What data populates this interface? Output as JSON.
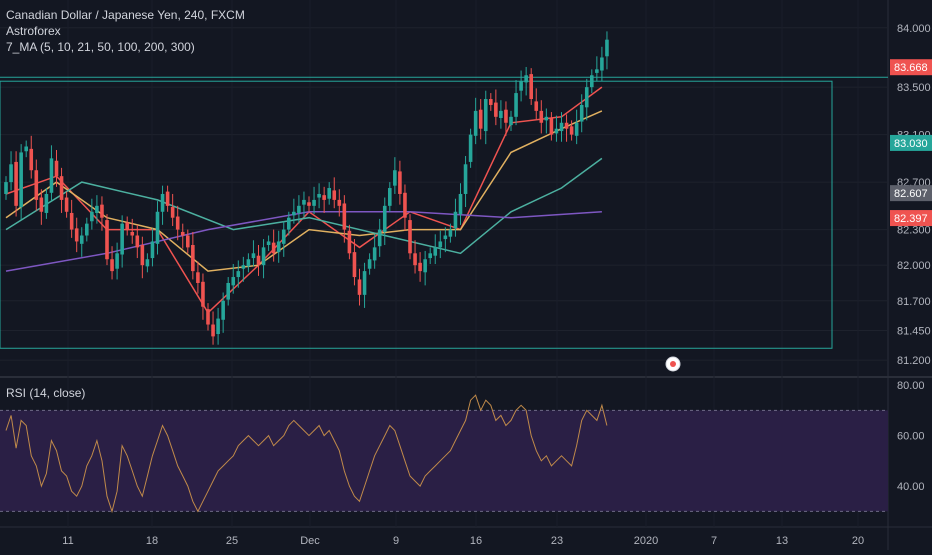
{
  "header": {
    "title": "Canadian Dollar / Japanese Yen, 240, FXCM",
    "broker": "Astroforex",
    "ma_indicator": "7_MA (5, 10, 21, 50, 100, 200, 300)"
  },
  "rsi_panel": {
    "label": "RSI (14, close)",
    "ticks": [
      "80.00",
      "60.00",
      "40.00"
    ]
  },
  "colors": {
    "background": "#131722",
    "up": "#26a69a",
    "down": "#ef5350",
    "rsi_band": "#2a1f45",
    "rsi_line": "#c08a4a",
    "rect": "#26a69a"
  },
  "chart_data": [
    {
      "type": "candlestick",
      "title": "Canadian Dollar / Japanese Yen, 240, FXCM",
      "ylim": [
        81.1,
        84.15
      ],
      "price_ticks": [
        "84.000",
        "83.500",
        "83.100",
        "82.700",
        "82.300",
        "82.000",
        "81.700",
        "81.450",
        "81.200"
      ],
      "price_labels": [
        {
          "value": "83.668",
          "color": "#ef5350"
        },
        {
          "value": "83.030",
          "color": "#26a69a"
        },
        {
          "value": "82.607",
          "color": "#5d606b"
        },
        {
          "value": "82.397",
          "color": "#ef5350"
        }
      ],
      "x_ticks": [
        "11",
        "18",
        "25",
        "Dec",
        "9",
        "16",
        "23",
        "2020",
        "7",
        "13",
        "20"
      ],
      "closes": [
        82.7,
        82.85,
        82.5,
        82.95,
        83.0,
        82.8,
        82.55,
        82.45,
        82.6,
        82.9,
        82.75,
        82.55,
        82.45,
        82.3,
        82.2,
        82.25,
        82.35,
        82.45,
        82.5,
        82.4,
        82.05,
        81.95,
        82.1,
        82.35,
        82.3,
        82.25,
        82.15,
        82.0,
        82.05,
        82.2,
        82.45,
        82.6,
        82.5,
        82.4,
        82.3,
        82.25,
        82.15,
        81.95,
        81.85,
        81.65,
        81.5,
        81.4,
        81.55,
        81.7,
        81.85,
        81.9,
        81.95,
        82.0,
        82.05,
        82.1,
        82.0,
        82.15,
        82.2,
        82.1,
        82.2,
        82.3,
        82.4,
        82.45,
        82.5,
        82.55,
        82.5,
        82.55,
        82.6,
        82.55,
        82.65,
        82.55,
        82.5,
        82.3,
        82.1,
        81.9,
        81.75,
        81.95,
        82.05,
        82.15,
        82.3,
        82.5,
        82.65,
        82.8,
        82.6,
        82.4,
        82.1,
        82.0,
        81.95,
        82.05,
        82.1,
        82.15,
        82.2,
        82.25,
        82.3,
        82.45,
        82.6,
        82.85,
        83.1,
        83.3,
        83.15,
        83.4,
        83.35,
        83.25,
        83.3,
        83.2,
        83.25,
        83.45,
        83.55,
        83.6,
        83.4,
        83.3,
        83.2,
        83.25,
        83.1,
        83.15,
        83.2,
        83.15,
        83.1,
        83.2,
        83.35,
        83.5,
        83.6,
        83.65,
        83.75,
        83.9
      ],
      "ma": [
        {
          "period": 5,
          "color": "#ef5350",
          "values": [
            [
              0,
              82.6
            ],
            [
              10,
              82.75
            ],
            [
              20,
              82.3
            ],
            [
              30,
              82.3
            ],
            [
              40,
              81.6
            ],
            [
              50,
              82.0
            ],
            [
              60,
              82.45
            ],
            [
              70,
              82.15
            ],
            [
              80,
              82.45
            ],
            [
              90,
              82.3
            ],
            [
              100,
              83.2
            ],
            [
              110,
              83.25
            ],
            [
              118,
              83.5
            ]
          ]
        },
        {
          "period": 10,
          "color": "#e0b060",
          "values": [
            [
              0,
              82.4
            ],
            [
              10,
              82.7
            ],
            [
              20,
              82.4
            ],
            [
              30,
              82.3
            ],
            [
              40,
              81.95
            ],
            [
              50,
              82.0
            ],
            [
              60,
              82.3
            ],
            [
              70,
              82.25
            ],
            [
              80,
              82.3
            ],
            [
              90,
              82.3
            ],
            [
              100,
              82.95
            ],
            [
              110,
              83.15
            ],
            [
              118,
              83.3
            ]
          ]
        },
        {
          "period": 50,
          "color": "#4cb0a0",
          "values": [
            [
              0,
              82.3
            ],
            [
              15,
              82.7
            ],
            [
              30,
              82.55
            ],
            [
              45,
              82.3
            ],
            [
              60,
              82.4
            ],
            [
              75,
              82.25
            ],
            [
              90,
              82.1
            ],
            [
              100,
              82.45
            ],
            [
              110,
              82.65
            ],
            [
              118,
              82.9
            ]
          ]
        },
        {
          "period": 100,
          "color": "#7e57c2",
          "values": [
            [
              0,
              81.95
            ],
            [
              20,
              82.1
            ],
            [
              40,
              82.3
            ],
            [
              60,
              82.45
            ],
            [
              80,
              82.45
            ],
            [
              100,
              82.4
            ],
            [
              118,
              82.45
            ]
          ]
        }
      ],
      "box": {
        "top": 83.55,
        "bottom": 81.3
      }
    },
    {
      "type": "line",
      "title": "RSI (14, close)",
      "ylim": [
        25,
        82
      ],
      "band": [
        30,
        70
      ],
      "values": [
        62,
        68,
        55,
        66,
        64,
        52,
        48,
        40,
        45,
        58,
        54,
        46,
        44,
        38,
        36,
        40,
        48,
        52,
        58,
        50,
        36,
        30,
        38,
        56,
        52,
        46,
        40,
        36,
        44,
        52,
        58,
        64,
        60,
        54,
        48,
        44,
        40,
        34,
        30,
        34,
        38,
        42,
        46,
        48,
        50,
        52,
        56,
        58,
        60,
        58,
        56,
        58,
        60,
        56,
        58,
        60,
        64,
        66,
        64,
        62,
        60,
        62,
        64,
        60,
        62,
        58,
        54,
        46,
        40,
        36,
        34,
        40,
        46,
        52,
        56,
        60,
        64,
        62,
        56,
        50,
        44,
        42,
        40,
        44,
        46,
        48,
        50,
        52,
        54,
        58,
        62,
        66,
        74,
        76,
        70,
        74,
        72,
        66,
        68,
        64,
        66,
        70,
        72,
        70,
        60,
        54,
        50,
        52,
        48,
        50,
        52,
        50,
        48,
        56,
        66,
        70,
        68,
        66,
        72,
        64
      ]
    }
  ]
}
